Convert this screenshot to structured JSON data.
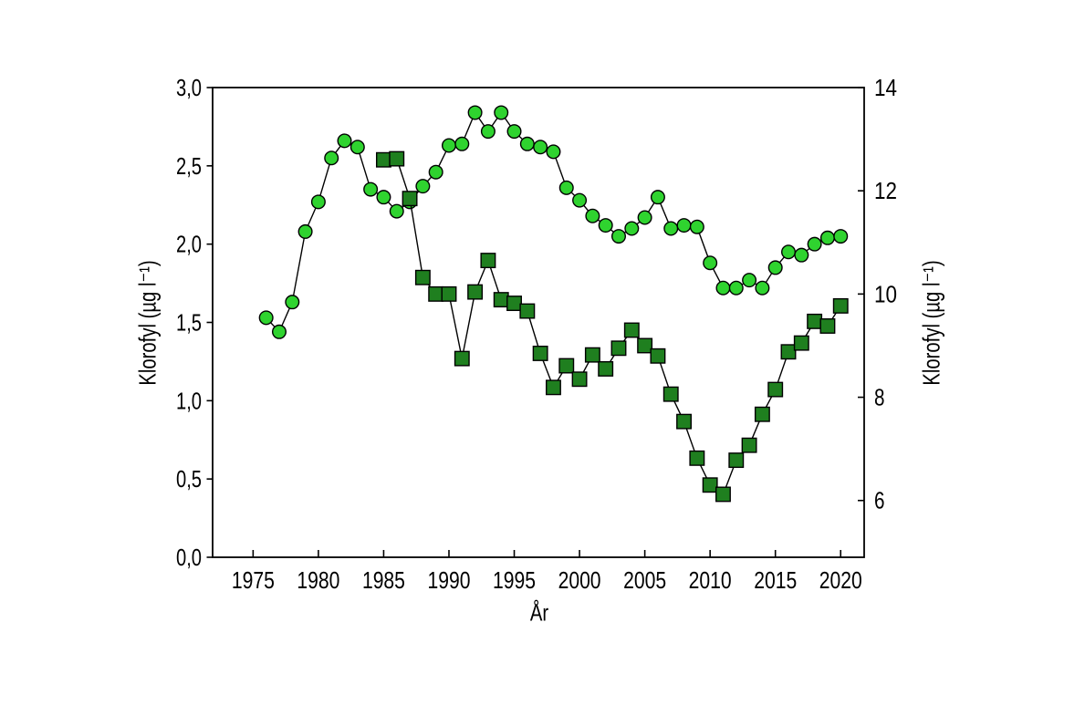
{
  "chart_data": {
    "type": "line",
    "title": "",
    "xlabel": "År",
    "grid": false,
    "legend": null,
    "x_axis": {
      "range": [
        1971.9,
        2021.8
      ],
      "ticks": [
        {
          "value": 1975,
          "label": "1975"
        },
        {
          "value": 1980,
          "label": "1980"
        },
        {
          "value": 1985,
          "label": "1985"
        },
        {
          "value": 1990,
          "label": "1990"
        },
        {
          "value": 1995,
          "label": "1995"
        },
        {
          "value": 2000,
          "label": "2000"
        },
        {
          "value": 2005,
          "label": "2005"
        },
        {
          "value": 2010,
          "label": "2010"
        },
        {
          "value": 2015,
          "label": "2015"
        },
        {
          "value": 2020,
          "label": "2020"
        }
      ]
    },
    "left_axis": {
      "label": "Klorofyl (µg l⁻¹)",
      "range": [
        0,
        3
      ],
      "ticks": [
        {
          "value": 0.0,
          "label": "0,0"
        },
        {
          "value": 0.5,
          "label": "0,5"
        },
        {
          "value": 1.0,
          "label": "1,0"
        },
        {
          "value": 1.5,
          "label": "1,5"
        },
        {
          "value": 2.0,
          "label": "2,0"
        },
        {
          "value": 2.5,
          "label": "2,5"
        },
        {
          "value": 3.0,
          "label": "3,0"
        }
      ]
    },
    "right_axis": {
      "label": "Klorofyl (µg l⁻¹)",
      "range": [
        4.9,
        14
      ],
      "ticks": [
        {
          "value": 6,
          "label": "6"
        },
        {
          "value": 8,
          "label": "8"
        },
        {
          "value": 10,
          "label": "10"
        },
        {
          "value": 12,
          "label": "12"
        },
        {
          "value": 14,
          "label": "14"
        }
      ]
    },
    "series": [
      {
        "name": "klorofyl-circles-left-axis",
        "axis": "left",
        "marker": "circle",
        "fill_color": "#2FD32F",
        "edge_color": "#000000",
        "points": [
          [
            1976,
            1.53
          ],
          [
            1977,
            1.44
          ],
          [
            1978,
            1.63
          ],
          [
            1979,
            2.08
          ],
          [
            1980,
            2.27
          ],
          [
            1981,
            2.55
          ],
          [
            1982,
            2.66
          ],
          [
            1983,
            2.62
          ],
          [
            1984,
            2.35
          ],
          [
            1985,
            2.3
          ],
          [
            1986,
            2.21
          ],
          [
            1987,
            2.27
          ],
          [
            1988,
            2.37
          ],
          [
            1989,
            2.46
          ],
          [
            1990,
            2.63
          ],
          [
            1991,
            2.64
          ],
          [
            1992,
            2.84
          ],
          [
            1993,
            2.72
          ],
          [
            1994,
            2.84
          ],
          [
            1995,
            2.72
          ],
          [
            1996,
            2.64
          ],
          [
            1997,
            2.62
          ],
          [
            1998,
            2.59
          ],
          [
            1999,
            2.36
          ],
          [
            2000,
            2.28
          ],
          [
            2001,
            2.18
          ],
          [
            2002,
            2.12
          ],
          [
            2003,
            2.05
          ],
          [
            2004,
            2.1
          ],
          [
            2005,
            2.17
          ],
          [
            2006,
            2.3
          ],
          [
            2007,
            2.1
          ],
          [
            2008,
            2.12
          ],
          [
            2009,
            2.11
          ],
          [
            2010,
            1.88
          ],
          [
            2011,
            1.72
          ],
          [
            2012,
            1.72
          ],
          [
            2013,
            1.77
          ],
          [
            2014,
            1.72
          ],
          [
            2015,
            1.85
          ],
          [
            2016,
            1.95
          ],
          [
            2017,
            1.93
          ],
          [
            2018,
            2.0
          ],
          [
            2019,
            2.04
          ],
          [
            2020,
            2.05
          ]
        ]
      },
      {
        "name": "klorofyl-squares-right-axis",
        "axis": "right",
        "marker": "square",
        "fill_color": "#1F7F1F",
        "edge_color": "#000000",
        "points": [
          [
            1985,
            12.6
          ],
          [
            1986,
            12.62
          ],
          [
            1987,
            11.85
          ],
          [
            1988,
            10.32
          ],
          [
            1989,
            10.0
          ],
          [
            1990,
            10.0
          ],
          [
            1991,
            8.75
          ],
          [
            1992,
            10.04
          ],
          [
            1993,
            10.65
          ],
          [
            1994,
            9.89
          ],
          [
            1995,
            9.82
          ],
          [
            1996,
            9.67
          ],
          [
            1997,
            8.85
          ],
          [
            1998,
            8.19
          ],
          [
            1999,
            8.61
          ],
          [
            2000,
            8.35
          ],
          [
            2001,
            8.82
          ],
          [
            2002,
            8.55
          ],
          [
            2003,
            8.95
          ],
          [
            2004,
            9.3
          ],
          [
            2005,
            9.0
          ],
          [
            2006,
            8.8
          ],
          [
            2007,
            8.06
          ],
          [
            2008,
            7.53
          ],
          [
            2009,
            6.82
          ],
          [
            2010,
            6.3
          ],
          [
            2011,
            6.12
          ],
          [
            2012,
            6.78
          ],
          [
            2013,
            7.07
          ],
          [
            2014,
            7.67
          ],
          [
            2015,
            8.15
          ],
          [
            2016,
            8.88
          ],
          [
            2017,
            9.05
          ],
          [
            2018,
            9.47
          ],
          [
            2019,
            9.38
          ],
          [
            2020,
            9.77
          ]
        ]
      }
    ]
  }
}
